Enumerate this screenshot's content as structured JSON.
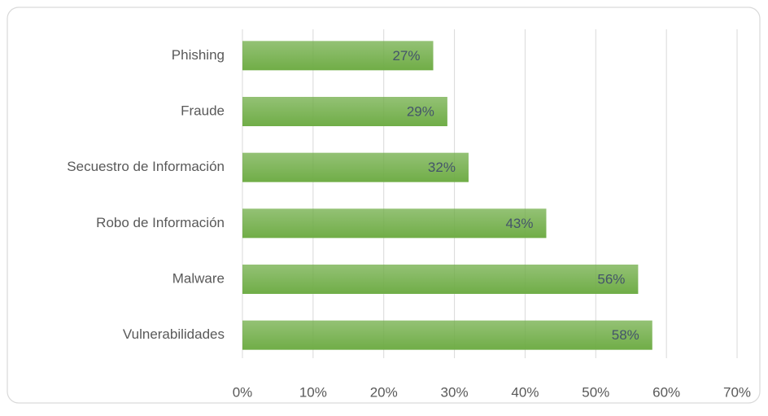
{
  "chart_data": {
    "type": "bar",
    "orientation": "horizontal",
    "categories": [
      "Phishing",
      "Fraude",
      "Secuestro de Información",
      "Robo de Información",
      "Malware",
      "Vulnerabilidades"
    ],
    "values": [
      27,
      29,
      32,
      43,
      56,
      58
    ],
    "value_labels": [
      "27%",
      "29%",
      "32%",
      "43%",
      "56%",
      "58%"
    ],
    "color": "#70ad47",
    "xlim": [
      0,
      70
    ],
    "xticks": [
      {
        "value": 0,
        "label": "0%"
      },
      {
        "value": 10,
        "label": "10%"
      },
      {
        "value": 20,
        "label": "20%"
      },
      {
        "value": 30,
        "label": "30%"
      },
      {
        "value": 40,
        "label": "40%"
      },
      {
        "value": 50,
        "label": "50%"
      },
      {
        "value": 60,
        "label": "60%"
      },
      {
        "value": 70,
        "label": "70%"
      }
    ],
    "grid": true
  }
}
